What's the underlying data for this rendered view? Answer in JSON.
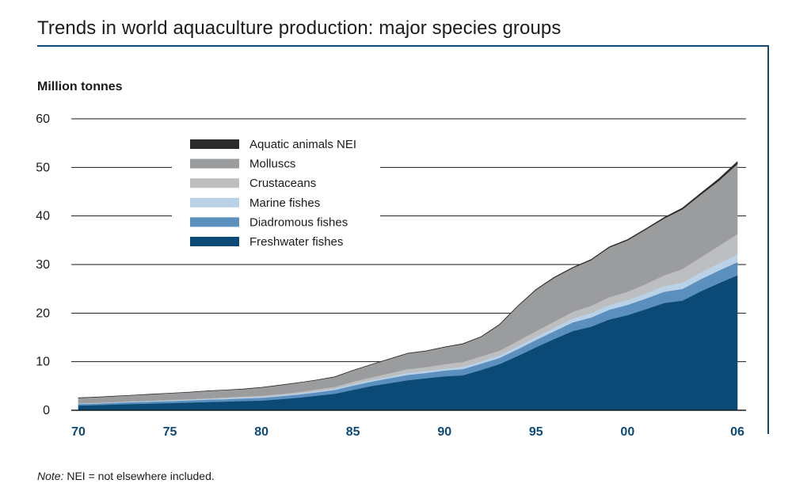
{
  "title": "Trends in world aquaculture production: major species groups",
  "note_label": "Note:",
  "note_text": " NEI = not elsewhere included.",
  "chart_data": {
    "type": "area",
    "stacked": true,
    "title": "Trends in world aquaculture production: major species groups",
    "ylabel": "Million tonnes",
    "xlabel": "",
    "xlim": [
      1970,
      2006
    ],
    "ylim": [
      0,
      60
    ],
    "yticks": [
      0,
      10,
      20,
      30,
      40,
      50,
      60
    ],
    "xticks": [
      1970,
      1975,
      1980,
      1985,
      1990,
      1995,
      2000,
      2006
    ],
    "xtick_labels": [
      "70",
      "75",
      "80",
      "85",
      "90",
      "95",
      "00",
      "06"
    ],
    "grid": "horizontal",
    "legend_position": "top-left",
    "x": [
      1970,
      1971,
      1972,
      1973,
      1974,
      1975,
      1976,
      1977,
      1978,
      1979,
      1980,
      1981,
      1982,
      1983,
      1984,
      1985,
      1986,
      1987,
      1988,
      1989,
      1990,
      1991,
      1992,
      1993,
      1994,
      1995,
      1996,
      1997,
      1998,
      1999,
      2000,
      2001,
      2002,
      2003,
      2004,
      2005,
      2006
    ],
    "series": [
      {
        "name": "Freshwater fishes",
        "color": "#0b4a76",
        "values": [
          1.0,
          1.1,
          1.2,
          1.3,
          1.4,
          1.5,
          1.6,
          1.7,
          1.8,
          1.9,
          2.0,
          2.3,
          2.6,
          3.0,
          3.4,
          4.2,
          5.0,
          5.6,
          6.2,
          6.6,
          7.0,
          7.2,
          8.3,
          9.5,
          11.2,
          13.0,
          14.7,
          16.3,
          17.2,
          18.7,
          19.6,
          20.8,
          22.1,
          22.6,
          24.5,
          26.2,
          27.8
        ]
      },
      {
        "name": "Diadromous fishes",
        "color": "#5b8fbd",
        "values": [
          0.3,
          0.3,
          0.35,
          0.4,
          0.4,
          0.4,
          0.45,
          0.5,
          0.5,
          0.55,
          0.6,
          0.6,
          0.65,
          0.7,
          0.8,
          0.9,
          0.9,
          1.0,
          1.1,
          1.1,
          1.2,
          1.3,
          1.3,
          1.3,
          1.4,
          1.5,
          1.6,
          1.8,
          1.9,
          2.0,
          2.1,
          2.2,
          2.3,
          2.4,
          2.5,
          2.6,
          2.7
        ]
      },
      {
        "name": "Marine fishes",
        "color": "#b9d2e8",
        "values": [
          0.1,
          0.1,
          0.1,
          0.12,
          0.12,
          0.15,
          0.15,
          0.15,
          0.2,
          0.2,
          0.2,
          0.2,
          0.2,
          0.25,
          0.25,
          0.3,
          0.3,
          0.35,
          0.4,
          0.4,
          0.4,
          0.45,
          0.5,
          0.5,
          0.6,
          0.6,
          0.7,
          0.8,
          0.9,
          1.0,
          1.0,
          1.1,
          1.2,
          1.3,
          1.4,
          1.5,
          1.6
        ]
      },
      {
        "name": "Crustaceans",
        "color": "#bdbec0",
        "values": [
          0.05,
          0.05,
          0.06,
          0.07,
          0.08,
          0.1,
          0.1,
          0.12,
          0.15,
          0.2,
          0.2,
          0.25,
          0.3,
          0.35,
          0.4,
          0.5,
          0.6,
          0.7,
          0.8,
          0.8,
          0.9,
          1.0,
          1.0,
          1.0,
          1.1,
          1.2,
          1.3,
          1.4,
          1.5,
          1.6,
          1.7,
          1.9,
          2.2,
          2.8,
          3.1,
          3.6,
          4.2
        ]
      },
      {
        "name": "Molluscs",
        "color": "#9b9c9e",
        "values": [
          1.1,
          1.15,
          1.2,
          1.2,
          1.3,
          1.35,
          1.4,
          1.5,
          1.5,
          1.5,
          1.7,
          1.8,
          1.9,
          1.9,
          2.0,
          2.3,
          2.6,
          2.9,
          3.2,
          3.3,
          3.5,
          3.7,
          4.0,
          5.3,
          7.1,
          8.5,
          9.0,
          9.0,
          9.4,
          10.2,
          10.6,
          11.2,
          11.7,
          12.3,
          12.9,
          13.4,
          14.4
        ]
      },
      {
        "name": "Aquatic animals NEI",
        "color": "#2b2b2b",
        "values": [
          0.02,
          0.02,
          0.02,
          0.02,
          0.02,
          0.02,
          0.02,
          0.03,
          0.03,
          0.03,
          0.03,
          0.03,
          0.03,
          0.03,
          0.04,
          0.04,
          0.04,
          0.05,
          0.05,
          0.05,
          0.05,
          0.06,
          0.06,
          0.07,
          0.08,
          0.09,
          0.1,
          0.1,
          0.12,
          0.13,
          0.15,
          0.17,
          0.2,
          0.25,
          0.3,
          0.4,
          0.5
        ]
      }
    ],
    "legend_order": [
      "Aquatic animals NEI",
      "Molluscs",
      "Crustaceans",
      "Marine fishes",
      "Diadromous fishes",
      "Freshwater fishes"
    ]
  }
}
